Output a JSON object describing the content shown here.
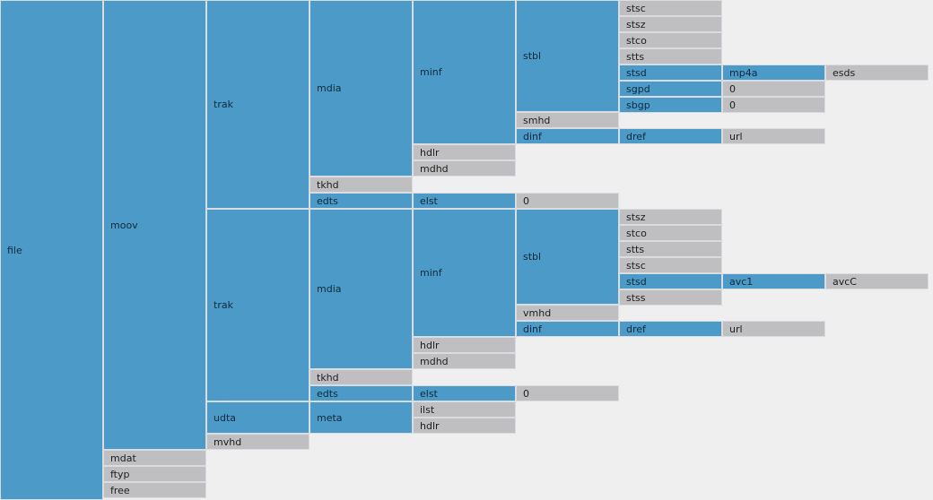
{
  "colors": {
    "container": "#4b9ac7",
    "leaf": "#bfbfc1",
    "background": "#efeff0"
  },
  "boxes": [
    {
      "id": "file",
      "label": "file",
      "kind": "container"
    },
    {
      "id": "moov",
      "label": "moov",
      "kind": "container"
    },
    {
      "id": "mdat",
      "label": "mdat",
      "kind": "leaf"
    },
    {
      "id": "ftyp",
      "label": "ftyp",
      "kind": "leaf"
    },
    {
      "id": "free",
      "label": "free",
      "kind": "leaf"
    },
    {
      "id": "trak1",
      "label": "trak",
      "kind": "container"
    },
    {
      "id": "trak2",
      "label": "trak",
      "kind": "container"
    },
    {
      "id": "udta",
      "label": "udta",
      "kind": "container"
    },
    {
      "id": "mvhd",
      "label": "mvhd",
      "kind": "leaf"
    },
    {
      "id": "mdia1",
      "label": "mdia",
      "kind": "container"
    },
    {
      "id": "tkhd1",
      "label": "tkhd",
      "kind": "leaf"
    },
    {
      "id": "edts1",
      "label": "edts",
      "kind": "container"
    },
    {
      "id": "mdia2",
      "label": "mdia",
      "kind": "container"
    },
    {
      "id": "tkhd2",
      "label": "tkhd",
      "kind": "leaf"
    },
    {
      "id": "edts2",
      "label": "edts",
      "kind": "container"
    },
    {
      "id": "meta",
      "label": "meta",
      "kind": "container"
    },
    {
      "id": "minf1",
      "label": "minf",
      "kind": "container"
    },
    {
      "id": "hdlr1",
      "label": "hdlr",
      "kind": "leaf"
    },
    {
      "id": "mdhd1",
      "label": "mdhd",
      "kind": "leaf"
    },
    {
      "id": "elst1",
      "label": "elst",
      "kind": "container"
    },
    {
      "id": "minf2",
      "label": "minf",
      "kind": "container"
    },
    {
      "id": "hdlr2",
      "label": "hdlr",
      "kind": "leaf"
    },
    {
      "id": "mdhd2",
      "label": "mdhd",
      "kind": "leaf"
    },
    {
      "id": "elst2",
      "label": "elst",
      "kind": "container"
    },
    {
      "id": "ilst",
      "label": "ilst",
      "kind": "leaf"
    },
    {
      "id": "hdlr3",
      "label": "hdlr",
      "kind": "leaf"
    },
    {
      "id": "stbl1",
      "label": "stbl",
      "kind": "container"
    },
    {
      "id": "smhd",
      "label": "smhd",
      "kind": "leaf"
    },
    {
      "id": "dinf1",
      "label": "dinf",
      "kind": "container"
    },
    {
      "id": "elst1val",
      "label": "0",
      "kind": "leaf"
    },
    {
      "id": "stbl2",
      "label": "stbl",
      "kind": "container"
    },
    {
      "id": "vmhd",
      "label": "vmhd",
      "kind": "leaf"
    },
    {
      "id": "dinf2",
      "label": "dinf",
      "kind": "container"
    },
    {
      "id": "elst2val",
      "label": "0",
      "kind": "leaf"
    },
    {
      "id": "stsc1",
      "label": "stsc",
      "kind": "leaf"
    },
    {
      "id": "stsz1",
      "label": "stsz",
      "kind": "leaf"
    },
    {
      "id": "stco1",
      "label": "stco",
      "kind": "leaf"
    },
    {
      "id": "stts1",
      "label": "stts",
      "kind": "leaf"
    },
    {
      "id": "stsd1",
      "label": "stsd",
      "kind": "container"
    },
    {
      "id": "sgpd",
      "label": "sgpd",
      "kind": "container"
    },
    {
      "id": "sbgp",
      "label": "sbgp",
      "kind": "container"
    },
    {
      "id": "dref1",
      "label": "dref",
      "kind": "container"
    },
    {
      "id": "stsz2",
      "label": "stsz",
      "kind": "leaf"
    },
    {
      "id": "stco2",
      "label": "stco",
      "kind": "leaf"
    },
    {
      "id": "stts2",
      "label": "stts",
      "kind": "leaf"
    },
    {
      "id": "stsc2",
      "label": "stsc",
      "kind": "leaf"
    },
    {
      "id": "stsd2",
      "label": "stsd",
      "kind": "container"
    },
    {
      "id": "stss",
      "label": "stss",
      "kind": "leaf"
    },
    {
      "id": "dref2",
      "label": "dref",
      "kind": "container"
    },
    {
      "id": "mp4a",
      "label": "mp4a",
      "kind": "container"
    },
    {
      "id": "sgpdval",
      "label": "0",
      "kind": "leaf"
    },
    {
      "id": "sbgpval",
      "label": "0",
      "kind": "leaf"
    },
    {
      "id": "url1",
      "label": "url",
      "kind": "leaf"
    },
    {
      "id": "avc1",
      "label": "avc1",
      "kind": "container"
    },
    {
      "id": "url2",
      "label": "url",
      "kind": "leaf"
    },
    {
      "id": "esds",
      "label": "esds",
      "kind": "leaf"
    },
    {
      "id": "avcC",
      "label": "avcC",
      "kind": "leaf"
    }
  ]
}
